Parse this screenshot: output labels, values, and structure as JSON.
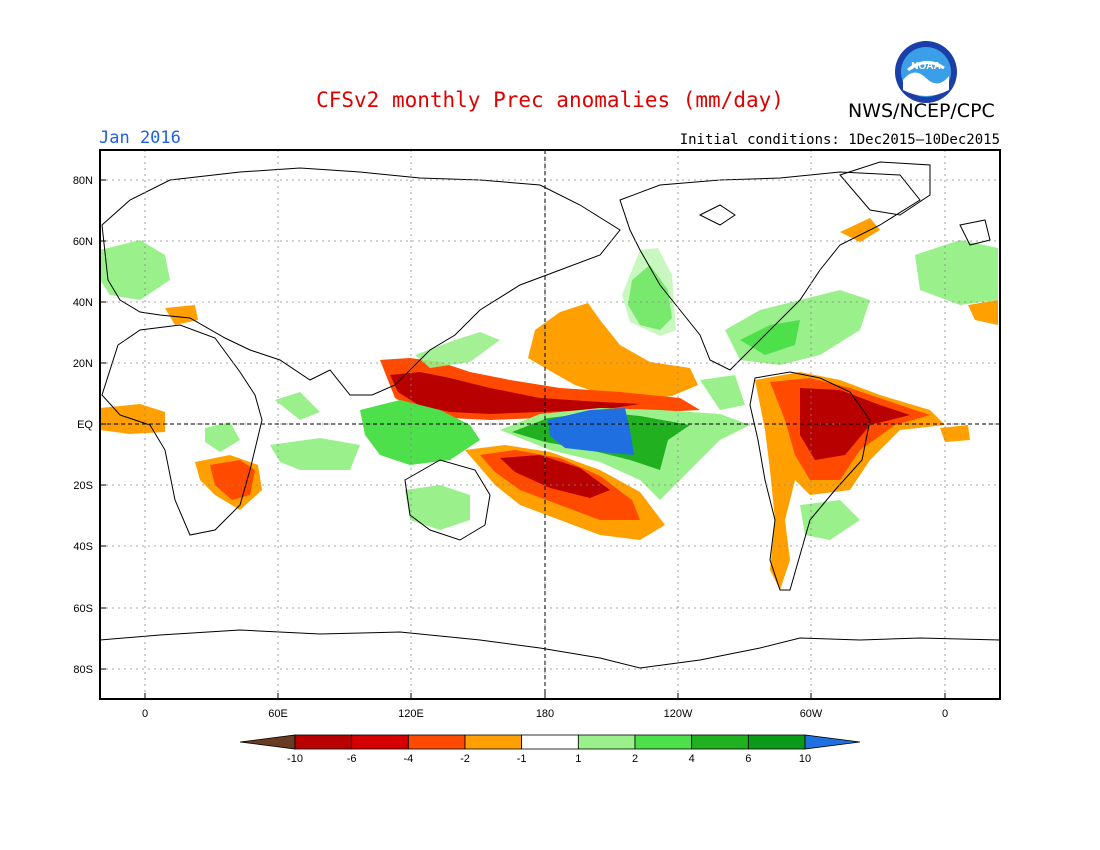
{
  "title": "CFSv2 monthly Prec anomalies (mm/day)",
  "agency": "NWS/NCEP/CPC",
  "logo_text": "NOAA",
  "forecast_month": "Jan 2016",
  "initial_conditions": "Initial conditions: 1Dec2015–10Dec2015",
  "lat_labels": [
    "80N",
    "60N",
    "40N",
    "20N",
    "EQ",
    "20S",
    "40S",
    "60S",
    "80S"
  ],
  "lon_labels": [
    "0",
    "60E",
    "120E",
    "180",
    "120W",
    "60W",
    "0"
  ],
  "colorbar": {
    "labels": [
      "-10",
      "-6",
      "-4",
      "-2",
      "-1",
      "1",
      "2",
      "4",
      "6",
      "10"
    ],
    "colors": [
      "#6b3a24",
      "#b80000",
      "#d60000",
      "#ff4a00",
      "#ff9f00",
      "#ffffff",
      "#9af08a",
      "#4ee04a",
      "#20b020",
      "#0a9a1a",
      "#1f6fe0"
    ]
  },
  "colors": {
    "dark_red": "#b80000",
    "red": "#ff3800",
    "orange": "#ff9f00",
    "light_green": "#9af08a",
    "green": "#4ee04a",
    "dark_green": "#0a9a1a",
    "blue": "#1f6fe0"
  }
}
